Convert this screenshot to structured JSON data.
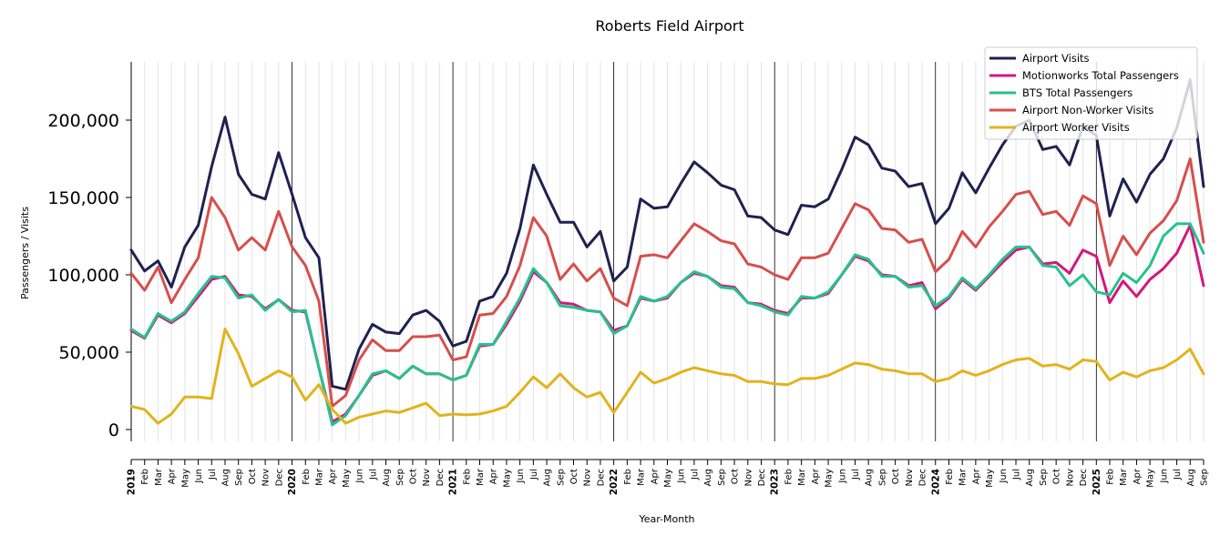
{
  "chart_data": {
    "type": "line",
    "title": "Roberts Field Airport",
    "xlabel": "Year-Month",
    "ylabel": "Passengers / Visits",
    "ylim": [
      -8000,
      238000
    ],
    "yticks": [
      0,
      50000,
      100000,
      150000,
      200000
    ],
    "ytick_labels": [
      "0",
      "50,000",
      "100,000",
      "150,000",
      "200,000"
    ],
    "grid": "vertical monthly lines, darker at each January",
    "legend_position": "top-right",
    "x": [
      "2019-01",
      "2019-02",
      "2019-03",
      "2019-04",
      "2019-05",
      "2019-06",
      "2019-07",
      "2019-08",
      "2019-09",
      "2019-10",
      "2019-11",
      "2019-12",
      "2020-01",
      "2020-02",
      "2020-03",
      "2020-04",
      "2020-05",
      "2020-06",
      "2020-07",
      "2020-08",
      "2020-09",
      "2020-10",
      "2020-11",
      "2020-12",
      "2021-01",
      "2021-02",
      "2021-03",
      "2021-04",
      "2021-05",
      "2021-06",
      "2021-07",
      "2021-08",
      "2021-09",
      "2021-10",
      "2021-11",
      "2021-12",
      "2022-01",
      "2022-02",
      "2022-03",
      "2022-04",
      "2022-05",
      "2022-06",
      "2022-07",
      "2022-08",
      "2022-09",
      "2022-10",
      "2022-11",
      "2022-12",
      "2023-01",
      "2023-02",
      "2023-03",
      "2023-04",
      "2023-05",
      "2023-06",
      "2023-07",
      "2023-08",
      "2023-09",
      "2023-10",
      "2023-11",
      "2023-12",
      "2024-01",
      "2024-02",
      "2024-03",
      "2024-04",
      "2024-05",
      "2024-06",
      "2024-07",
      "2024-08",
      "2024-09",
      "2024-10",
      "2024-11",
      "2024-12",
      "2025-01",
      "2025-02",
      "2025-03",
      "2025-04",
      "2025-05",
      "2025-06",
      "2025-07",
      "2025-08",
      "2025-09"
    ],
    "x_tick_labels": [
      "2019",
      "Feb",
      "Mar",
      "Apr",
      "May",
      "Jun",
      "Jul",
      "Aug",
      "Sep",
      "Oct",
      "Nov",
      "Dec",
      "2020",
      "Feb",
      "Mar",
      "Apr",
      "May",
      "Jun",
      "Jul",
      "Aug",
      "Sep",
      "Oct",
      "Nov",
      "Dec",
      "2021",
      "Feb",
      "Mar",
      "Apr",
      "May",
      "Jun",
      "Jul",
      "Aug",
      "Sep",
      "Oct",
      "Nov",
      "Dec",
      "2022",
      "Feb",
      "Mar",
      "Apr",
      "May",
      "Jun",
      "Jul",
      "Aug",
      "Sep",
      "Oct",
      "Nov",
      "Dec",
      "2023",
      "Feb",
      "Mar",
      "Apr",
      "May",
      "Jun",
      "Jul",
      "Aug",
      "Sep",
      "Oct",
      "Nov",
      "Dec",
      "2024",
      "Feb",
      "Mar",
      "Apr",
      "May",
      "Jun",
      "Jul",
      "Aug",
      "Sep",
      "Oct",
      "Nov",
      "Dec",
      "2025",
      "Feb",
      "Mar",
      "Apr",
      "May",
      "Jun",
      "Jul",
      "Aug",
      "Sep"
    ],
    "series": [
      {
        "name": "Airport Visits",
        "color": "#1f2150",
        "values": [
          116000,
          102500,
          109000,
          92000,
          118000,
          132000,
          170000,
          202000,
          165000,
          152000,
          149000,
          179000,
          152000,
          124000,
          111000,
          28000,
          26000,
          52000,
          68000,
          63000,
          62000,
          74000,
          77000,
          70000,
          54000,
          57000,
          83000,
          86000,
          101000,
          130000,
          171000,
          152000,
          134000,
          134000,
          118000,
          128000,
          96000,
          105000,
          149000,
          143000,
          144000,
          159000,
          173000,
          166000,
          158000,
          155000,
          138000,
          137000,
          129000,
          126000,
          145000,
          144000,
          149000,
          168000,
          189000,
          184000,
          169000,
          167000,
          157000,
          159000,
          133000,
          143000,
          166000,
          153000,
          169000,
          184000,
          196000,
          200000,
          181000,
          183000,
          171000,
          196000,
          190000,
          138000,
          162000,
          147000,
          165000,
          175000,
          195000,
          226000,
          157000
        ]
      },
      {
        "name": "Motionworks Total Passengers",
        "color": "#d3177f",
        "values": [
          64000,
          59000,
          74000,
          69000,
          75000,
          86000,
          97000,
          99000,
          87000,
          86000,
          78000,
          84000,
          77000,
          76000,
          40000,
          5000,
          10000,
          22000,
          35000,
          38000,
          33000,
          41000,
          36000,
          36000,
          32000,
          35000,
          54000,
          55000,
          68000,
          83000,
          102000,
          95000,
          82000,
          81000,
          77000,
          76000,
          64000,
          67000,
          85000,
          83000,
          85000,
          95000,
          101000,
          99000,
          93000,
          92000,
          82000,
          81000,
          77000,
          75000,
          85000,
          85000,
          88000,
          100000,
          112000,
          109000,
          100000,
          99000,
          93000,
          95000,
          78000,
          85000,
          97000,
          90000,
          99000,
          108000,
          116000,
          118000,
          107000,
          108000,
          101000,
          116000,
          112000,
          82000,
          96000,
          86000,
          97000,
          104000,
          114000,
          132000,
          93000
        ]
      },
      {
        "name": "BTS Total Passengers",
        "color": "#27c18e",
        "values": [
          65000,
          59500,
          75000,
          70000,
          76000,
          88000,
          99000,
          98000,
          85000,
          87000,
          77000,
          84000,
          76000,
          77000,
          40000,
          3000,
          9000,
          22000,
          36000,
          38000,
          33000,
          41000,
          36000,
          36000,
          32000,
          35000,
          55000,
          55000,
          70000,
          85000,
          104000,
          95000,
          80000,
          79000,
          77000,
          76000,
          62000,
          67000,
          86000,
          83000,
          86000,
          95000,
          102000,
          99000,
          92000,
          91000,
          82000,
          80000,
          76000,
          74000,
          86000,
          85000,
          89000,
          100000,
          113000,
          110000,
          99000,
          99000,
          92000,
          93000,
          80000,
          86000,
          98000,
          91000,
          100000,
          110000,
          118000,
          118000,
          106000,
          105000,
          93000,
          100000,
          89000,
          87000,
          101000,
          95000,
          106000,
          125000,
          133000,
          133000,
          114000
        ]
      },
      {
        "name": "Airport Non-Worker Visits",
        "color": "#d64f4c",
        "values": [
          101000,
          90000,
          105000,
          82000,
          97000,
          111000,
          150000,
          137000,
          116000,
          124000,
          116000,
          141000,
          118000,
          106000,
          83000,
          15000,
          22000,
          45000,
          58000,
          51000,
          51000,
          60000,
          60000,
          61000,
          45000,
          47000,
          74000,
          75000,
          86000,
          106000,
          137000,
          125000,
          97000,
          107000,
          96000,
          104000,
          85000,
          80000,
          112000,
          113000,
          111000,
          122000,
          133000,
          128000,
          122000,
          120000,
          107000,
          105000,
          100000,
          97000,
          111000,
          111000,
          114000,
          130000,
          146000,
          142000,
          130000,
          129000,
          121000,
          123000,
          102000,
          110000,
          128000,
          118000,
          131000,
          141000,
          152000,
          154000,
          139000,
          141000,
          132000,
          151000,
          146000,
          106000,
          125000,
          113000,
          127000,
          135000,
          148000,
          175000,
          121000
        ]
      },
      {
        "name": "Airport Worker Visits",
        "color": "#e2b31c",
        "values": [
          15000,
          13000,
          4000,
          10000,
          21000,
          21000,
          20000,
          65000,
          49000,
          28000,
          33000,
          38000,
          34000,
          19000,
          29000,
          13000,
          4000,
          8000,
          10000,
          12000,
          11000,
          14000,
          17000,
          9000,
          10000,
          9500,
          10000,
          12000,
          15000,
          24000,
          34000,
          27000,
          36000,
          27000,
          21000,
          24000,
          11000,
          24000,
          37000,
          30000,
          33000,
          37000,
          40000,
          38000,
          36000,
          35000,
          31000,
          31000,
          29500,
          29000,
          33000,
          33000,
          35000,
          39000,
          43000,
          42000,
          39000,
          38000,
          36000,
          36000,
          31000,
          33000,
          38000,
          35000,
          38000,
          42000,
          45000,
          46000,
          41000,
          42000,
          39000,
          45000,
          44000,
          32000,
          37000,
          34000,
          38000,
          40000,
          45000,
          52000,
          36000
        ]
      }
    ]
  }
}
